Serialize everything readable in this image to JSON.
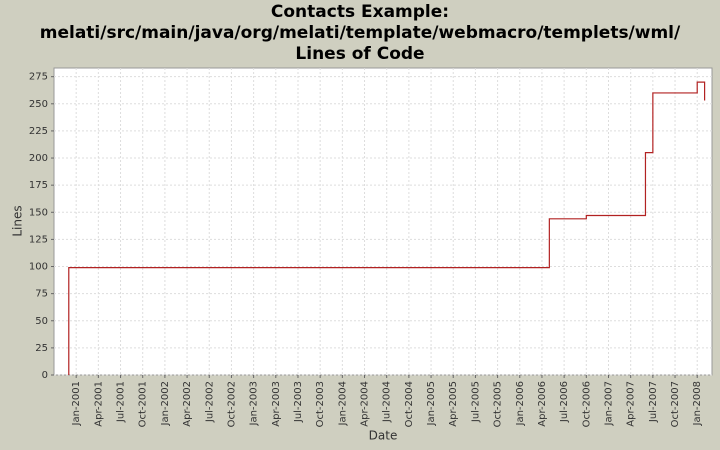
{
  "chart_data": {
    "type": "line",
    "title": [
      "Contacts Example:",
      "melati/src/main/java/org/melati/template/webmacro/templets/wml/",
      "Lines of Code"
    ],
    "x_label": "Date",
    "y_label": "Lines",
    "color": "#b22222",
    "grid": true,
    "x": [
      "2000-12",
      "2000-12",
      "2006-05",
      "2006-05",
      "2006-10",
      "2006-10",
      "2007-06",
      "2007-06",
      "2007-07",
      "2007-07",
      "2008-01",
      "2008-01",
      "2008-02",
      "2008-02"
    ],
    "values": [
      0,
      99,
      99,
      144,
      144,
      147,
      147,
      205,
      205,
      260,
      260,
      270,
      270,
      253
    ],
    "xlim": [
      "2000-10",
      "2008-03"
    ],
    "ylim": [
      0,
      283
    ],
    "yticks": [
      0,
      25,
      50,
      75,
      100,
      125,
      150,
      175,
      200,
      225,
      250,
      275
    ],
    "xticks": [
      {
        "value": "2001-01",
        "label": "Jan-2001"
      },
      {
        "value": "2001-04",
        "label": "Apr-2001"
      },
      {
        "value": "2001-07",
        "label": "Jul-2001"
      },
      {
        "value": "2001-10",
        "label": "Oct-2001"
      },
      {
        "value": "2002-01",
        "label": "Jan-2002"
      },
      {
        "value": "2002-04",
        "label": "Apr-2002"
      },
      {
        "value": "2002-07",
        "label": "Jul-2002"
      },
      {
        "value": "2002-10",
        "label": "Oct-2002"
      },
      {
        "value": "2003-01",
        "label": "Jan-2003"
      },
      {
        "value": "2003-04",
        "label": "Apr-2003"
      },
      {
        "value": "2003-07",
        "label": "Jul-2003"
      },
      {
        "value": "2003-10",
        "label": "Oct-2003"
      },
      {
        "value": "2004-01",
        "label": "Jan-2004"
      },
      {
        "value": "2004-04",
        "label": "Apr-2004"
      },
      {
        "value": "2004-07",
        "label": "Jul-2004"
      },
      {
        "value": "2004-10",
        "label": "Oct-2004"
      },
      {
        "value": "2005-01",
        "label": "Jan-2005"
      },
      {
        "value": "2005-04",
        "label": "Apr-2005"
      },
      {
        "value": "2005-07",
        "label": "Jul-2005"
      },
      {
        "value": "2005-10",
        "label": "Oct-2005"
      },
      {
        "value": "2006-01",
        "label": "Jan-2006"
      },
      {
        "value": "2006-04",
        "label": "Apr-2006"
      },
      {
        "value": "2006-07",
        "label": "Jul-2006"
      },
      {
        "value": "2006-10",
        "label": "Oct-2006"
      },
      {
        "value": "2007-01",
        "label": "Jan-2007"
      },
      {
        "value": "2007-04",
        "label": "Apr-2007"
      },
      {
        "value": "2007-07",
        "label": "Jul-2007"
      },
      {
        "value": "2007-10",
        "label": "Oct-2007"
      },
      {
        "value": "2008-01",
        "label": "Jan-2008"
      }
    ]
  }
}
